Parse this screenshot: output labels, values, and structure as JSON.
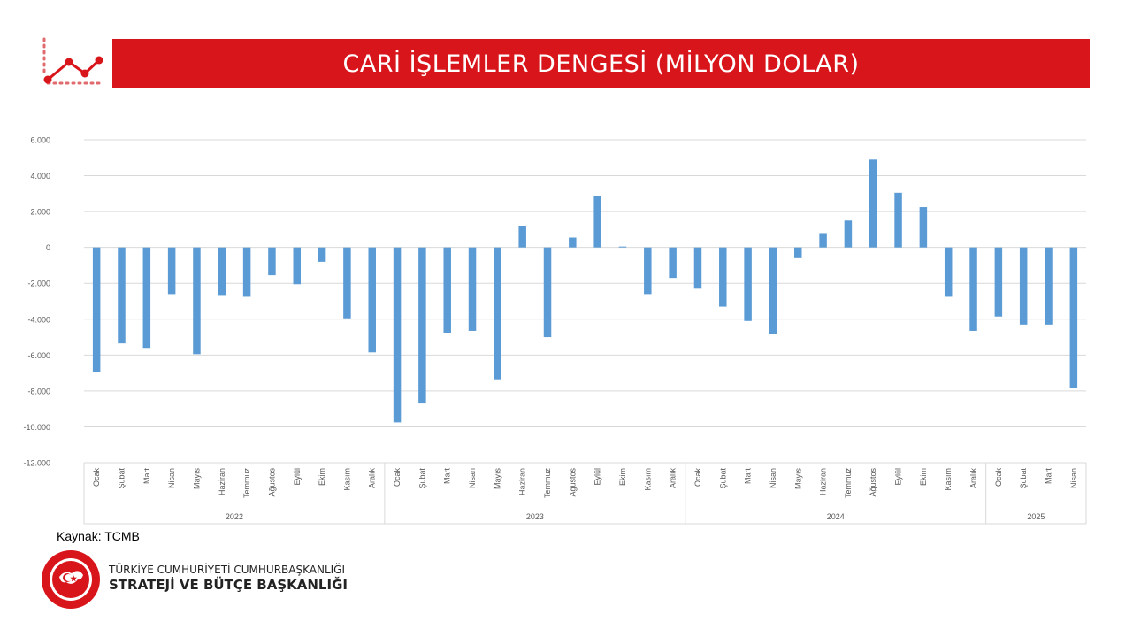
{
  "header": {
    "title": "CARİ İŞLEMLER DENGESİ (MİLYON DOLAR)",
    "icon": "trend-line-icon",
    "accent_color": "#d9151c"
  },
  "chart_data": {
    "type": "bar",
    "title": "",
    "xlabel": "",
    "ylabel": "",
    "ylim": [
      -12000,
      6000
    ],
    "ytick_step": 2000,
    "ytick_labels": [
      "6.000",
      "4.000",
      "2.000",
      "0",
      "-2.000",
      "-4.000",
      "-6.000",
      "-8.000",
      "-10.000",
      "-12.000"
    ],
    "grid": true,
    "bar_color": "#5b9bd5",
    "year_groups": [
      {
        "year": "2022",
        "count": 12
      },
      {
        "year": "2023",
        "count": 12
      },
      {
        "year": "2024",
        "count": 12
      },
      {
        "year": "2025",
        "count": 4
      }
    ],
    "categories": [
      "Ocak",
      "Şubat",
      "Mart",
      "Nisan",
      "Mayıs",
      "Haziran",
      "Temmuz",
      "Ağustos",
      "Eylül",
      "Ekim",
      "Kasım",
      "Aralık",
      "Ocak",
      "Şubat",
      "Mart",
      "Nisan",
      "Mayıs",
      "Haziran",
      "Temmuz",
      "Ağustos",
      "Eylül",
      "Ekim",
      "Kasım",
      "Aralık",
      "Ocak",
      "Şubat",
      "Mart",
      "Nisan",
      "Mayıs",
      "Haziran",
      "Temmuz",
      "Ağustos",
      "Eylül",
      "Ekim",
      "Kasım",
      "Aralık",
      "Ocak",
      "Şubat",
      "Mart",
      "Nisan"
    ],
    "values": [
      -6950,
      -5350,
      -5600,
      -2600,
      -5950,
      -2700,
      -2750,
      -1550,
      -2050,
      -800,
      -3950,
      -5850,
      -9750,
      -8700,
      -4750,
      -4650,
      -7350,
      1200,
      -5000,
      550,
      2850,
      50,
      -2600,
      -1700,
      -2300,
      -3300,
      -4100,
      -4800,
      -600,
      800,
      1500,
      4900,
      3050,
      2250,
      -2750,
      -4650,
      -3850,
      -4300,
      -4300,
      -7850
    ]
  },
  "footer": {
    "source": "Kaynak: TCMB",
    "org_line1": "TÜRKİYE CUMHURİYETİ CUMHURBAŞKANLIĞI",
    "org_line2": "STRATEJİ VE BÜTÇE BAŞKANLIĞI",
    "logo_text": "T.C. CUMHURBAŞKANLIĞI STRATEJİ VE BÜTÇE BAŞKANLIĞI"
  }
}
